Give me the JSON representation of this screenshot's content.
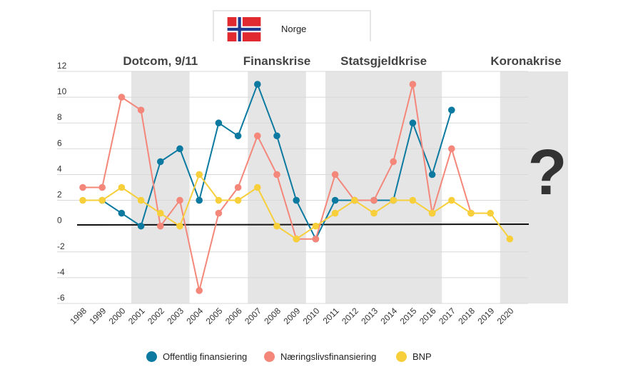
{
  "tab": {
    "label": "Norge",
    "flag_icon": "norway-flag-icon"
  },
  "periods": [
    {
      "label": "Dotcom, 9/11",
      "start": "2001",
      "end": "2003"
    },
    {
      "label": "Finanskrise",
      "start": "2007",
      "end": "2009"
    },
    {
      "label": "Statsgjeldkrise",
      "start": "2011",
      "end": "2016"
    },
    {
      "label": "Koronakrise",
      "start": "2020",
      "end": ""
    }
  ],
  "question_mark": "?",
  "chart_data": {
    "type": "line",
    "categories": [
      "1998",
      "1999",
      "2000",
      "2001",
      "2002",
      "2003",
      "2004",
      "2005",
      "2006",
      "2007",
      "2008",
      "2009",
      "2010",
      "2011",
      "2012",
      "2013",
      "2014",
      "2015",
      "2016",
      "2017",
      "2018",
      "2019",
      "2020"
    ],
    "ylim": [
      -6,
      12
    ],
    "yticks": [
      "12",
      "10",
      "8",
      "6",
      "4",
      "2",
      "0",
      "-2",
      "-4",
      "-6"
    ],
    "grid": true,
    "legend_position": "bottom",
    "series": [
      {
        "name": "Offentlig finansiering",
        "color": "#0c7aa0",
        "values": [
          null,
          2,
          1,
          0,
          5,
          6,
          2,
          8,
          7,
          11,
          7,
          2,
          -1,
          2,
          2,
          2,
          2,
          8,
          4,
          9,
          null,
          null,
          null
        ]
      },
      {
        "name": "Næringslivsfinansiering",
        "color": "#f4877a",
        "values": [
          3,
          3,
          10,
          9,
          0,
          2,
          -5,
          1,
          3,
          7,
          4,
          -1,
          -1,
          4,
          2,
          2,
          5,
          11,
          1,
          6,
          1,
          null,
          null
        ]
      },
      {
        "name": "BNP",
        "color": "#f7cf3b",
        "values": [
          2,
          2,
          3,
          2,
          1,
          0,
          4,
          2,
          2,
          3,
          0,
          -1,
          0,
          1,
          2,
          1,
          2,
          2,
          1,
          2,
          1,
          1,
          -1
        ]
      }
    ]
  }
}
